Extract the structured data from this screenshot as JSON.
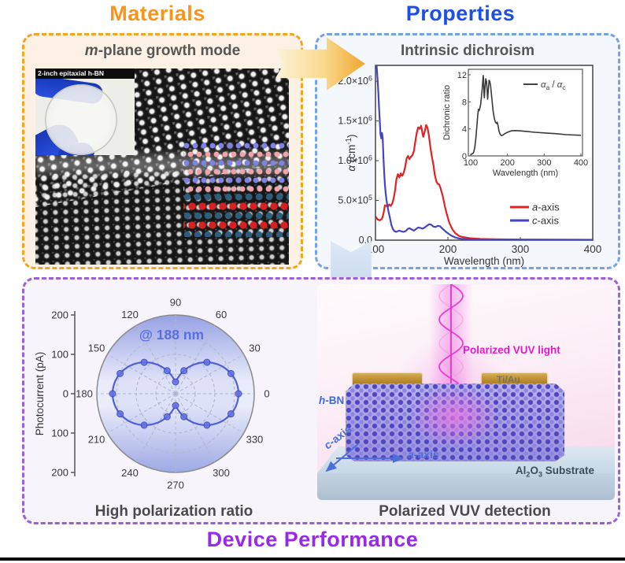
{
  "titles": {
    "materials": "Materials",
    "properties": "Properties",
    "device": "Device Performance"
  },
  "colors": {
    "materials_accent": "#F7941D",
    "properties_accent": "#1D4FE6",
    "device_accent": "#9929E8",
    "a_axis": "#e02323",
    "c_axis": "#4545bd",
    "polar_curve": "#4f5fd7",
    "vuv_magenta": "#E619C9"
  },
  "materials": {
    "header_italic": "m",
    "header_rest": "-plane growth mode",
    "inset_label": "2-inch epitaxial h-BN"
  },
  "properties": {
    "header": "Intrinsic dichroism"
  },
  "device": {
    "caption_left": "High polarization ratio",
    "caption_right": "Polarized VUV detection",
    "scene": {
      "light_label": "Polarized VUV light",
      "electrode_label": "Ti/Au",
      "hbn_italic": "h",
      "hbn_rest": "-BN",
      "a_axis_italic": "a",
      "a_axis_rest": "-axis",
      "c_axis_italic": "c",
      "c_axis_rest": "-axis",
      "substrate_pre": "Al",
      "substrate_sub1": "2",
      "substrate_mid": "O",
      "substrate_sub2": "3",
      "substrate_post": " Substrate"
    }
  },
  "chart_data": [
    {
      "id": "absorption_spectrum",
      "type": "line",
      "xlabel": "Wavelength (nm)",
      "ylabel": "~{α} (cm^{-1})",
      "xlim": [
        100,
        400
      ],
      "ylim": [
        0,
        2200000.0
      ],
      "grid": false,
      "legend_position": "lower right",
      "x_ticks": [
        {
          "v": 100,
          "label": "100"
        },
        {
          "v": 200,
          "label": "200"
        },
        {
          "v": 300,
          "label": "300"
        },
        {
          "v": 400,
          "label": "400"
        }
      ],
      "y_ticks": [
        {
          "v": 0,
          "label": "0.0"
        },
        {
          "v": 500000.0,
          "label": "5.0×10^{5}"
        },
        {
          "v": 1000000.0,
          "label": "1.0×10^{6}"
        },
        {
          "v": 1500000.0,
          "label": "1.5×10^{6}"
        },
        {
          "v": 2000000.0,
          "label": "2.0×10^{6}"
        }
      ],
      "series": [
        {
          "name": "~{a}-axis",
          "color": "#e02323",
          "points": [
            [
              100,
              300000.0
            ],
            [
              103,
              260000.0
            ],
            [
              106,
              250000.0
            ],
            [
              109,
              270000.0
            ],
            [
              111,
              330000.0
            ],
            [
              113,
              440000.0
            ],
            [
              115,
              430000.0
            ],
            [
              117,
              420000.0
            ],
            [
              119,
              450000.0
            ],
            [
              121,
              430000.0
            ],
            [
              123,
              460000.0
            ],
            [
              125,
              520000.0
            ],
            [
              127,
              620000.0
            ],
            [
              129,
              770000.0
            ],
            [
              131,
              830000.0
            ],
            [
              133,
              790000.0
            ],
            [
              135,
              840000.0
            ],
            [
              137,
              810000.0
            ],
            [
              139,
              850000.0
            ],
            [
              141,
              920000.0
            ],
            [
              143,
              1030000.0
            ],
            [
              145,
              1060000.0
            ],
            [
              147,
              1020000.0
            ],
            [
              149,
              1050000.0
            ],
            [
              151,
              1070000.0
            ],
            [
              153,
              1120000.0
            ],
            [
              155,
              1240000.0
            ],
            [
              157,
              1350000.0
            ],
            [
              159,
              1420000.0
            ],
            [
              161,
              1400000.0
            ],
            [
              163,
              1440000.0
            ],
            [
              165,
              1340000.0
            ],
            [
              166,
              1300000.0
            ],
            [
              168,
              1370000.0
            ],
            [
              170,
              1450000.0
            ],
            [
              172,
              1410000.0
            ],
            [
              174,
              1300000.0
            ],
            [
              176,
              1160000.0
            ],
            [
              178,
              1040000.0
            ],
            [
              180,
              950000.0
            ],
            [
              182,
              820000.0
            ],
            [
              184,
              740000.0
            ],
            [
              186,
              710000.0
            ],
            [
              188,
              700000.0
            ],
            [
              190,
              650000.0
            ],
            [
              193,
              550000.0
            ],
            [
              196,
              420000.0
            ],
            [
              199,
              310000.0
            ],
            [
              202,
              220000.0
            ],
            [
              206,
              140000.0
            ],
            [
              210,
              90000.0
            ],
            [
              215,
              55000.0
            ],
            [
              220,
              40000.0
            ],
            [
              230,
              25000.0
            ],
            [
              245,
              15000.0
            ],
            [
              270,
              10000.0
            ],
            [
              300,
              8000.0
            ],
            [
              350,
              6000.0
            ],
            [
              400,
              5000.0
            ]
          ]
        },
        {
          "name": "~{c}-axis",
          "color": "#4545bd",
          "points": [
            [
              100,
              2300000.0
            ],
            [
              101,
              2250000.0
            ],
            [
              102,
              2150000.0
            ],
            [
              103,
              2000000.0
            ],
            [
              104,
              1850000.0
            ],
            [
              105,
              1650000.0
            ],
            [
              106,
              1500000.0
            ],
            [
              107,
              1330000.0
            ],
            [
              108,
              1280000.0
            ],
            [
              109,
              1350000.0
            ],
            [
              110,
              1280000.0
            ],
            [
              111,
              1050000.0
            ],
            [
              112,
              860000.0
            ],
            [
              113,
              700000.0
            ],
            [
              114,
              600000.0
            ],
            [
              115,
              520000.0
            ],
            [
              116,
              460000.0
            ],
            [
              117,
              410000.0
            ],
            [
              118,
              360000.0
            ],
            [
              120,
              280000.0
            ],
            [
              122,
              190000.0
            ],
            [
              124,
              140000.0
            ],
            [
              126,
              115000.0
            ],
            [
              128,
              105000.0
            ],
            [
              130,
              110000.0
            ],
            [
              133,
              120000.0
            ],
            [
              136,
              110000.0
            ],
            [
              139,
              105000.0
            ],
            [
              142,
              115000.0
            ],
            [
              145,
              145000.0
            ],
            [
              147,
              150000.0
            ],
            [
              150,
              135000.0
            ],
            [
              153,
              120000.0
            ],
            [
              156,
              140000.0
            ],
            [
              159,
              160000.0
            ],
            [
              162,
              155000.0
            ],
            [
              165,
              145000.0
            ],
            [
              168,
              160000.0
            ],
            [
              171,
              180000.0
            ],
            [
              174,
              200000.0
            ],
            [
              177,
              195000.0
            ],
            [
              180,
              170000.0
            ],
            [
              183,
              165000.0
            ],
            [
              186,
              180000.0
            ],
            [
              189,
              175000.0
            ],
            [
              192,
              150000.0
            ],
            [
              195,
              125000.0
            ],
            [
              198,
              100000.0
            ],
            [
              201,
              80000.0
            ],
            [
              205,
              55000.0
            ],
            [
              210,
              35000.0
            ],
            [
              215,
              22000.0
            ],
            [
              220,
              15000.0
            ],
            [
              230,
              10000.0
            ],
            [
              250,
              7000.0
            ],
            [
              300,
              5000.0
            ],
            [
              400,
              4000.0
            ]
          ]
        }
      ]
    },
    {
      "id": "dichroic_ratio_inset",
      "type": "line",
      "xlabel": "Wavelength (nm)",
      "ylabel": "Dichronic ratio",
      "xlim": [
        100,
        400
      ],
      "ylim": [
        0,
        12
      ],
      "x_ticks": [
        100,
        200,
        300,
        400
      ],
      "y_ticks": [
        0,
        4,
        8,
        12
      ],
      "legend_label": "~{α}_{a} / ~{α}_{c}",
      "series": [
        {
          "name": "αa/αc",
          "color": "#3a3a3a",
          "points": [
            [
              100,
              0.2
            ],
            [
              104,
              0.3
            ],
            [
              108,
              0.5
            ],
            [
              111,
              1.2
            ],
            [
              114,
              2.6
            ],
            [
              117,
              4.5
            ],
            [
              119,
              6.0
            ],
            [
              121,
              6.9
            ],
            [
              123,
              6.7
            ],
            [
              125,
              7.1
            ],
            [
              127,
              7.6
            ],
            [
              129,
              8.6
            ],
            [
              131,
              9.8
            ],
            [
              133,
              11.2
            ],
            [
              134,
              11.9
            ],
            [
              135,
              11.4
            ],
            [
              136,
              9.4
            ],
            [
              137,
              8.6
            ],
            [
              139,
              10.2
            ],
            [
              141,
              11.4
            ],
            [
              143,
              11.0
            ],
            [
              145,
              9.4
            ],
            [
              146,
              8.4
            ],
            [
              148,
              9.8
            ],
            [
              150,
              11.2
            ],
            [
              152,
              11.0
            ],
            [
              154,
              10.4
            ],
            [
              156,
              9.4
            ],
            [
              158,
              8.2
            ],
            [
              161,
              6.6
            ],
            [
              164,
              5.6
            ],
            [
              167,
              5.0
            ],
            [
              170,
              4.8
            ],
            [
              172,
              5.0
            ],
            [
              174,
              4.6
            ],
            [
              177,
              3.7
            ],
            [
              180,
              3.2
            ],
            [
              184,
              3.0
            ],
            [
              188,
              3.1
            ],
            [
              193,
              3.3
            ],
            [
              200,
              3.5
            ],
            [
              210,
              3.7
            ],
            [
              220,
              3.75
            ],
            [
              235,
              3.7
            ],
            [
              255,
              3.6
            ],
            [
              275,
              3.5
            ],
            [
              300,
              3.4
            ],
            [
              330,
              3.3
            ],
            [
              360,
              3.15
            ],
            [
              400,
              3.05
            ]
          ]
        }
      ]
    },
    {
      "id": "photocurrent_polar",
      "type": "polar",
      "annotation": "@ 188 nm",
      "annotation_color": "#5b6ee1",
      "axis_label": "Photocurrent (pA)",
      "axis_tick_labels": [
        "200",
        "100",
        "0",
        "100",
        "200"
      ],
      "r_max_pA": 200,
      "r_grid_pA": [
        50,
        100,
        150,
        200
      ],
      "angle_labels_deg": [
        0,
        30,
        60,
        90,
        120,
        150,
        180,
        210,
        240,
        270,
        300,
        330
      ],
      "lobe": {
        "min_pA": 30,
        "max_pA": 160,
        "exponent": 1.3,
        "orientation_deg": 0
      },
      "marker_angles_deg": [
        0,
        20,
        45,
        70,
        90,
        110,
        135,
        160,
        180,
        200,
        225,
        250,
        270,
        290,
        315,
        340
      ],
      "color": "#4f5fd7"
    }
  ]
}
